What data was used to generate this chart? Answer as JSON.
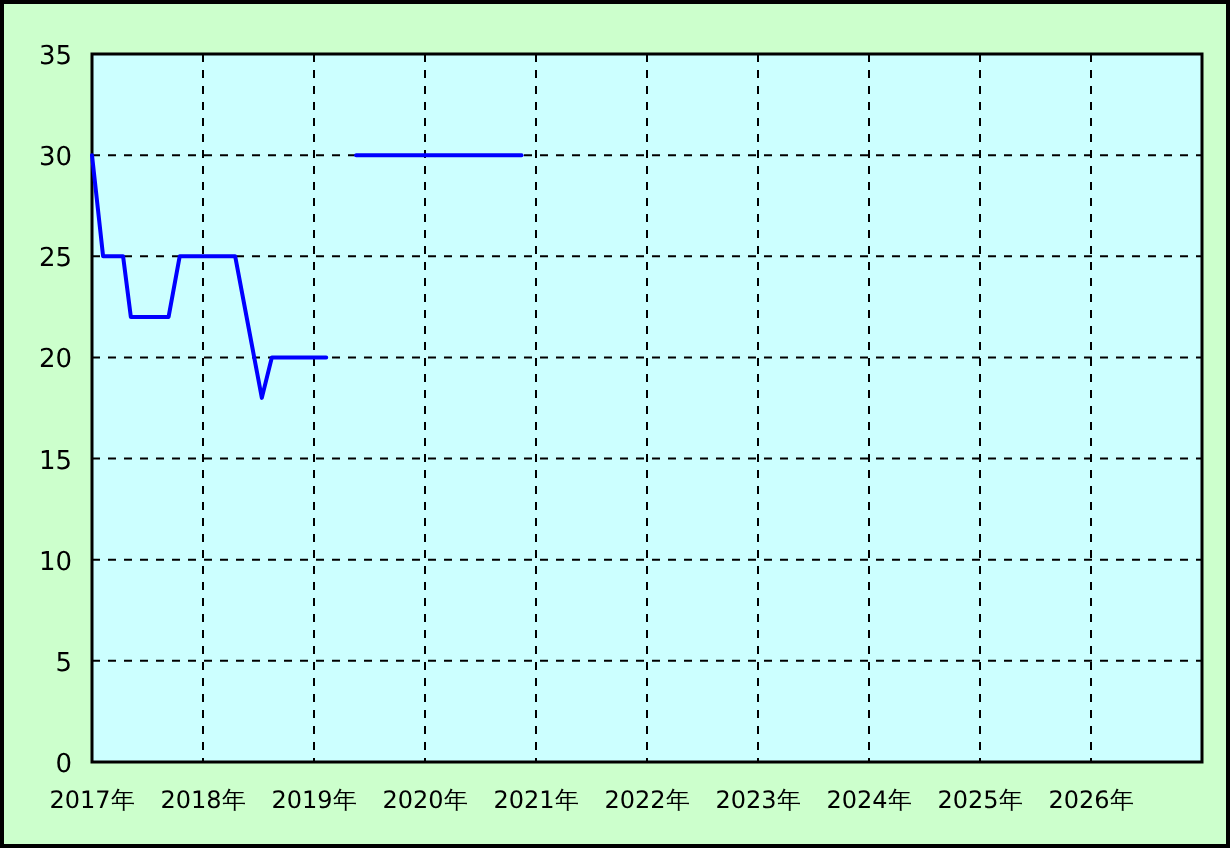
{
  "chart_data": {
    "type": "line",
    "series": [
      {
        "color": "#0000ff",
        "x": [
          2017.0,
          2017.1,
          2017.28,
          2017.35,
          2017.69,
          2017.79,
          2018.29,
          2018.53,
          2018.62,
          2019.11
        ],
        "values": [
          30,
          25,
          25,
          22,
          22,
          25,
          25,
          18,
          20,
          20
        ]
      },
      {
        "color": "#0000ff",
        "x": [
          2019.38,
          2020.87
        ],
        "values": [
          30,
          30
        ]
      }
    ],
    "xlim": [
      2017,
      2027
    ],
    "ylim": [
      0,
      35
    ],
    "xticks": [
      {
        "value": 2017,
        "label": "2017年"
      },
      {
        "value": 2018,
        "label": "2018年"
      },
      {
        "value": 2019,
        "label": "2019年"
      },
      {
        "value": 2020,
        "label": "2020年"
      },
      {
        "value": 2021,
        "label": "2021年"
      },
      {
        "value": 2022,
        "label": "2022年"
      },
      {
        "value": 2023,
        "label": "2023年"
      },
      {
        "value": 2024,
        "label": "2024年"
      },
      {
        "value": 2025,
        "label": "2025年"
      },
      {
        "value": 2026,
        "label": "2026年"
      }
    ],
    "yticks": [
      0,
      5,
      10,
      15,
      20,
      25,
      30,
      35
    ],
    "grid": true,
    "marker": "none",
    "line_style": "solid"
  }
}
